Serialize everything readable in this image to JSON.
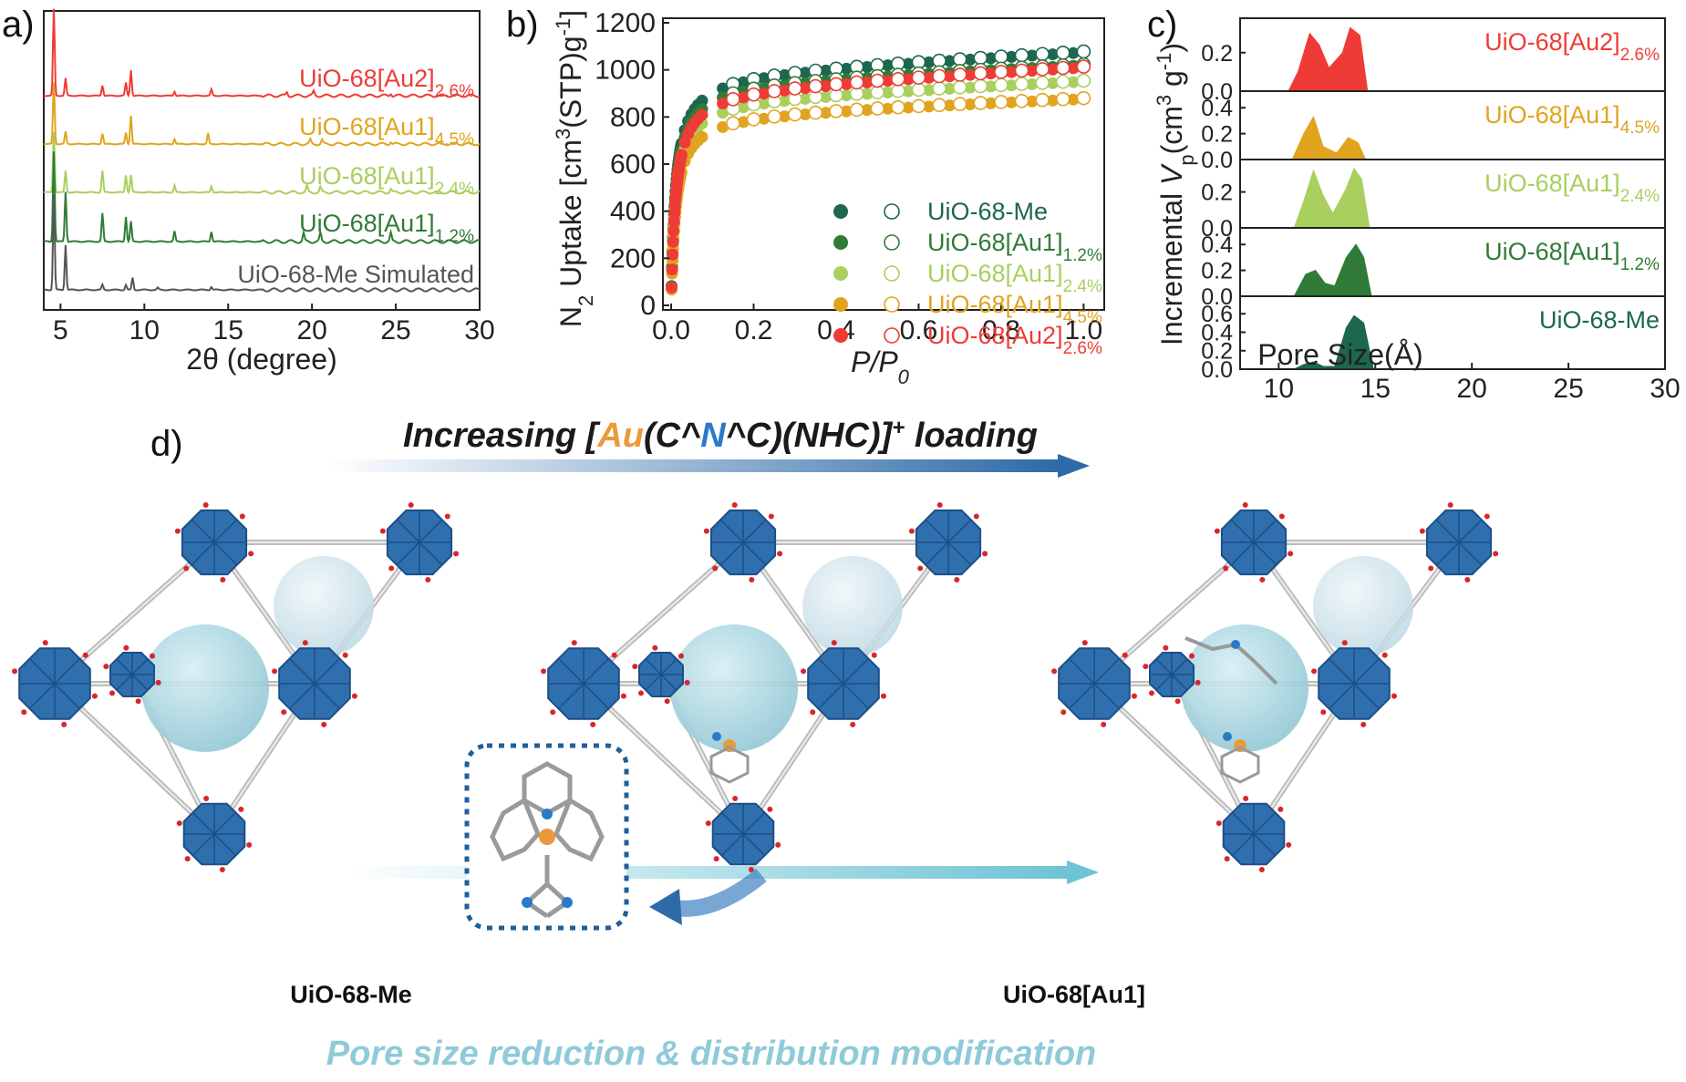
{
  "colors": {
    "Me": "#1d6650",
    "Au1_12": "#2f7b37",
    "Au1_24": "#a9cf5e",
    "Au1_45": "#e1a41f",
    "Au2_26": "#ef3b36",
    "sim": "#555555",
    "node": "#2f6fae",
    "gold": "#e99a3b",
    "nitrogen": "#2a7ac8"
  },
  "chart_data": [
    {
      "id": "a",
      "type": "line",
      "panel_label": "a)",
      "xlabel": "2θ (degree)",
      "x_ticks": [
        5,
        10,
        15,
        20,
        25,
        30
      ],
      "xlim": [
        4,
        30
      ],
      "series": [
        {
          "key": "Au2_26",
          "name": "UiO-68[Au2]",
          "sub": "2.6%",
          "color_key": "Au2_26",
          "peaks": [
            [
              4.6,
              1.0
            ],
            [
              5.3,
              0.2
            ],
            [
              7.5,
              0.12
            ],
            [
              8.9,
              0.15
            ],
            [
              9.2,
              0.3
            ],
            [
              11.8,
              0.05
            ],
            [
              14.0,
              0.07
            ],
            [
              18.5,
              0.04
            ],
            [
              20.1,
              0.05
            ],
            [
              24.7,
              0.03
            ]
          ]
        },
        {
          "key": "Au1_45",
          "name": "UiO-68[Au1]",
          "sub": "4.5%",
          "color_key": "Au1_45",
          "peaks": [
            [
              4.6,
              0.75
            ],
            [
              5.3,
              0.15
            ],
            [
              7.5,
              0.13
            ],
            [
              8.9,
              0.14
            ],
            [
              9.2,
              0.35
            ],
            [
              11.8,
              0.06
            ],
            [
              13.8,
              0.13
            ],
            [
              19.9,
              0.05
            ],
            [
              20.6,
              0.05
            ],
            [
              24.7,
              0.03
            ]
          ]
        },
        {
          "key": "Au1_24",
          "name": "UiO-68[Au1]",
          "sub": "2.4%",
          "color_key": "Au1_24",
          "peaks": [
            [
              4.6,
              0.7
            ],
            [
              5.3,
              0.25
            ],
            [
              7.5,
              0.25
            ],
            [
              8.9,
              0.2
            ],
            [
              9.2,
              0.2
            ],
            [
              11.8,
              0.08
            ],
            [
              14.0,
              0.07
            ],
            [
              19.7,
              0.07
            ],
            [
              20.5,
              0.06
            ],
            [
              24.7,
              0.04
            ]
          ]
        },
        {
          "key": "Au1_12",
          "name": "UiO-68[Au1]",
          "sub": "1.2%",
          "color_key": "Au1_12",
          "peaks": [
            [
              4.6,
              0.9
            ],
            [
              5.3,
              0.5
            ],
            [
              7.5,
              0.28
            ],
            [
              8.9,
              0.25
            ],
            [
              9.2,
              0.2
            ],
            [
              11.8,
              0.1
            ],
            [
              14.0,
              0.1
            ],
            [
              19.5,
              0.08
            ],
            [
              20.5,
              0.08
            ],
            [
              24.7,
              0.08
            ]
          ]
        },
        {
          "key": "sim",
          "name": "UiO-68-Me Simulated",
          "sub": "",
          "color_key": "sim",
          "peaks": [
            [
              4.6,
              0.95
            ],
            [
              5.3,
              0.45
            ],
            [
              7.5,
              0.05
            ],
            [
              8.9,
              0.05
            ],
            [
              9.3,
              0.12
            ],
            [
              10.8,
              0.02
            ],
            [
              14.0,
              0.03
            ]
          ]
        }
      ]
    },
    {
      "id": "b",
      "type": "scatter",
      "panel_label": "b)",
      "xlabel": "P/P",
      "xlabel_sub": "0",
      "ylabel_parts": [
        "N",
        "2",
        " Uptake [cm",
        "3",
        "(STP)g",
        "-1",
        "]"
      ],
      "xlim": [
        -0.02,
        1.05
      ],
      "ylim": [
        0,
        1200
      ],
      "x_ticks": [
        0.0,
        0.2,
        0.4,
        0.6,
        0.8,
        1.0
      ],
      "y_ticks": [
        0,
        200,
        400,
        600,
        800,
        1000,
        1200
      ],
      "series": [
        {
          "key": "Me",
          "name": "UiO-68-Me",
          "sub": "",
          "color_key": "Me",
          "plateau": 1085,
          "slope": 95
        },
        {
          "key": "Au1_12",
          "name": "UiO-68[Au1]",
          "sub": "1.2%",
          "color_key": "Au1_12",
          "plateau": 1030,
          "slope": 80
        },
        {
          "key": "Au1_24",
          "name": "UiO-68[Au1]",
          "sub": "2.4%",
          "color_key": "Au1_24",
          "plateau": 960,
          "slope": 80
        },
        {
          "key": "Au1_45",
          "name": "UiO-68[Au1]",
          "sub": "4.5%",
          "color_key": "Au1_45",
          "plateau": 885,
          "slope": 70
        },
        {
          "key": "Au2_26",
          "name": "UiO-68[Au2]",
          "sub": "2.6%",
          "color_key": "Au2_26",
          "plateau": 1020,
          "slope": 100
        }
      ]
    },
    {
      "id": "c",
      "type": "area",
      "panel_label": "c)",
      "xlabel": "Pore Size(Å)",
      "ylabel_parts": [
        "Incremental ",
        "V",
        "p",
        "(cm",
        "3",
        " g",
        "-1",
        ")"
      ],
      "xlim": [
        8,
        30
      ],
      "x_ticks": [
        10,
        15,
        20,
        25,
        30
      ],
      "subplots": [
        {
          "key": "Au2_26",
          "name": "UiO-68[Au2]",
          "sub": "2.6%",
          "color_key": "Au2_26",
          "ymax": 0.36,
          "y_ticks": [
            0.0,
            0.2
          ],
          "points": [
            [
              10.5,
              0
            ],
            [
              11.0,
              0.1
            ],
            [
              11.6,
              0.3
            ],
            [
              12.1,
              0.24
            ],
            [
              12.6,
              0.12
            ],
            [
              13.3,
              0.2
            ],
            [
              13.7,
              0.33
            ],
            [
              14.2,
              0.29
            ],
            [
              14.6,
              0
            ]
          ]
        },
        {
          "key": "Au1_45",
          "name": "UiO-68[Au1]",
          "sub": "4.5%",
          "color_key": "Au1_45",
          "ymax": 0.5,
          "y_ticks": [
            0.0,
            0.2,
            0.4
          ],
          "points": [
            [
              10.7,
              0
            ],
            [
              11.3,
              0.2
            ],
            [
              11.8,
              0.33
            ],
            [
              12.3,
              0.1
            ],
            [
              13.0,
              0.05
            ],
            [
              13.6,
              0.17
            ],
            [
              14.1,
              0.13
            ],
            [
              14.5,
              0
            ]
          ]
        },
        {
          "key": "Au1_24",
          "name": "UiO-68[Au1]",
          "sub": "2.4%",
          "color_key": "Au1_24",
          "ymax": 0.36,
          "y_ticks": [
            0.0,
            0.2
          ],
          "points": [
            [
              10.8,
              0
            ],
            [
              11.3,
              0.15
            ],
            [
              11.8,
              0.32
            ],
            [
              12.3,
              0.18
            ],
            [
              12.8,
              0.08
            ],
            [
              13.5,
              0.22
            ],
            [
              13.9,
              0.33
            ],
            [
              14.3,
              0.27
            ],
            [
              14.7,
              0
            ]
          ]
        },
        {
          "key": "Au1_12",
          "name": "UiO-68[Au1]",
          "sub": "1.2%",
          "color_key": "Au1_12",
          "ymax": 0.5,
          "y_ticks": [
            0.0,
            0.2,
            0.4
          ],
          "points": [
            [
              10.8,
              0
            ],
            [
              11.4,
              0.17
            ],
            [
              11.9,
              0.2
            ],
            [
              12.4,
              0.1
            ],
            [
              12.9,
              0.08
            ],
            [
              13.5,
              0.3
            ],
            [
              14.0,
              0.4
            ],
            [
              14.4,
              0.3
            ],
            [
              14.8,
              0
            ]
          ]
        },
        {
          "key": "Me",
          "name": "UiO-68-Me",
          "sub": "",
          "color_key": "Me",
          "ymax": 0.75,
          "y_ticks": [
            0.0,
            0.2,
            0.4,
            0.6
          ],
          "points": [
            [
              10.8,
              0
            ],
            [
              11.3,
              0.05
            ],
            [
              11.8,
              0.08
            ],
            [
              12.3,
              0.03
            ],
            [
              12.9,
              0.03
            ],
            [
              13.5,
              0.45
            ],
            [
              13.9,
              0.58
            ],
            [
              14.4,
              0.5
            ],
            [
              14.9,
              0
            ]
          ]
        }
      ]
    }
  ],
  "panel_d": {
    "label": "d)",
    "banner_prefix": "Increasing  [",
    "banner_au": "Au",
    "banner_mid1": "(C^",
    "banner_n": "N",
    "banner_mid2": "^C)(NHC)]",
    "banner_sup": "+",
    "banner_suffix": " loading",
    "caption_left": "UiO-68-Me",
    "caption_right": "UiO-68[Au1]",
    "bottom_banner": "Pore size reduction & distribution modification"
  }
}
